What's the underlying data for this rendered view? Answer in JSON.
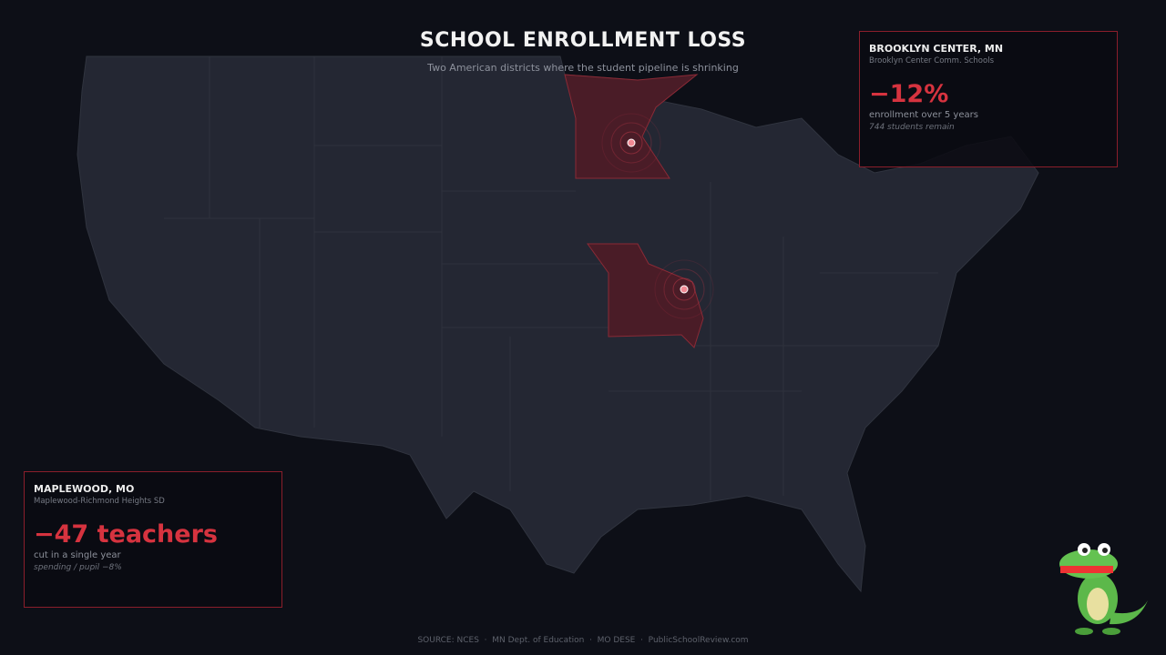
{
  "header": {
    "title": "SCHOOL ENROLLMENT LOSS",
    "subtitle": "Two American districts where the student pipeline is shrinking"
  },
  "cards": [
    {
      "place": "BROOKLYN CENTER, MN",
      "district": "Brooklyn Center Comm. Schools",
      "stat": "−12%",
      "caption": "enrollment over 5 years",
      "note": "744 students remain"
    },
    {
      "place": "MAPLEWOOD, MO",
      "district": "Maplewood-Richmond Heights SD",
      "stat": "−47 teachers",
      "caption": "cut in a single year",
      "note": "spending / pupil  −8%"
    }
  ],
  "footer": {
    "source": "SOURCE: NCES  ·  MN Dept. of Education  ·  MO DESE  ·  PublicSchoolReview.com"
  }
}
